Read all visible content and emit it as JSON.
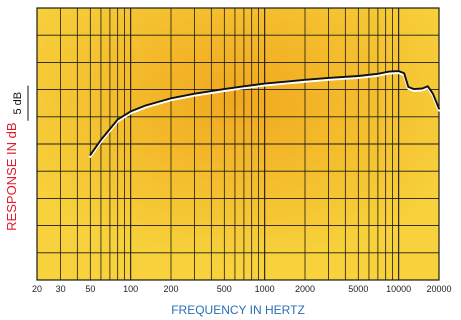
{
  "chart_data": {
    "type": "line",
    "title": "",
    "xlabel": "FREQUENCY IN HERTZ",
    "ylabel": "RESPONSE IN dB",
    "x_scale": "log",
    "xlim": [
      20,
      20000
    ],
    "x_ticks": [
      20,
      30,
      50,
      100,
      200,
      500,
      1000,
      2000,
      5000,
      10000,
      20000
    ],
    "x_tick_labels": [
      "20",
      "30",
      "50",
      "100",
      "200",
      "500",
      "1000",
      "2000",
      "5000",
      "10000",
      "20000"
    ],
    "ylim_div": [
      0,
      10
    ],
    "y_division_db": 5,
    "scale_label": "5 dB",
    "grid": true,
    "colors": {
      "background_outer": "#f7d23c",
      "background_center": "#f1a81e",
      "grid": "#1a1a1a",
      "curve": "#111111",
      "curve_highlight": "#ffffff",
      "xlabel": "#2a6fb5",
      "ylabel": "#e01b2a"
    },
    "series": [
      {
        "points": [
          [
            50,
            4.6
          ],
          [
            60,
            5.15
          ],
          [
            70,
            5.55
          ],
          [
            80,
            5.9
          ],
          [
            100,
            6.2
          ],
          [
            130,
            6.42
          ],
          [
            170,
            6.58
          ],
          [
            200,
            6.68
          ],
          [
            300,
            6.85
          ],
          [
            500,
            7.02
          ],
          [
            700,
            7.12
          ],
          [
            1000,
            7.22
          ],
          [
            1500,
            7.3
          ],
          [
            2000,
            7.36
          ],
          [
            3000,
            7.43
          ],
          [
            5000,
            7.5
          ],
          [
            7000,
            7.58
          ],
          [
            8500,
            7.66
          ],
          [
            10000,
            7.68
          ],
          [
            11000,
            7.6
          ],
          [
            11800,
            7.1
          ],
          [
            13000,
            7.02
          ],
          [
            15000,
            7.04
          ],
          [
            16500,
            7.12
          ],
          [
            18000,
            6.85
          ],
          [
            20000,
            6.3
          ]
        ]
      }
    ]
  }
}
